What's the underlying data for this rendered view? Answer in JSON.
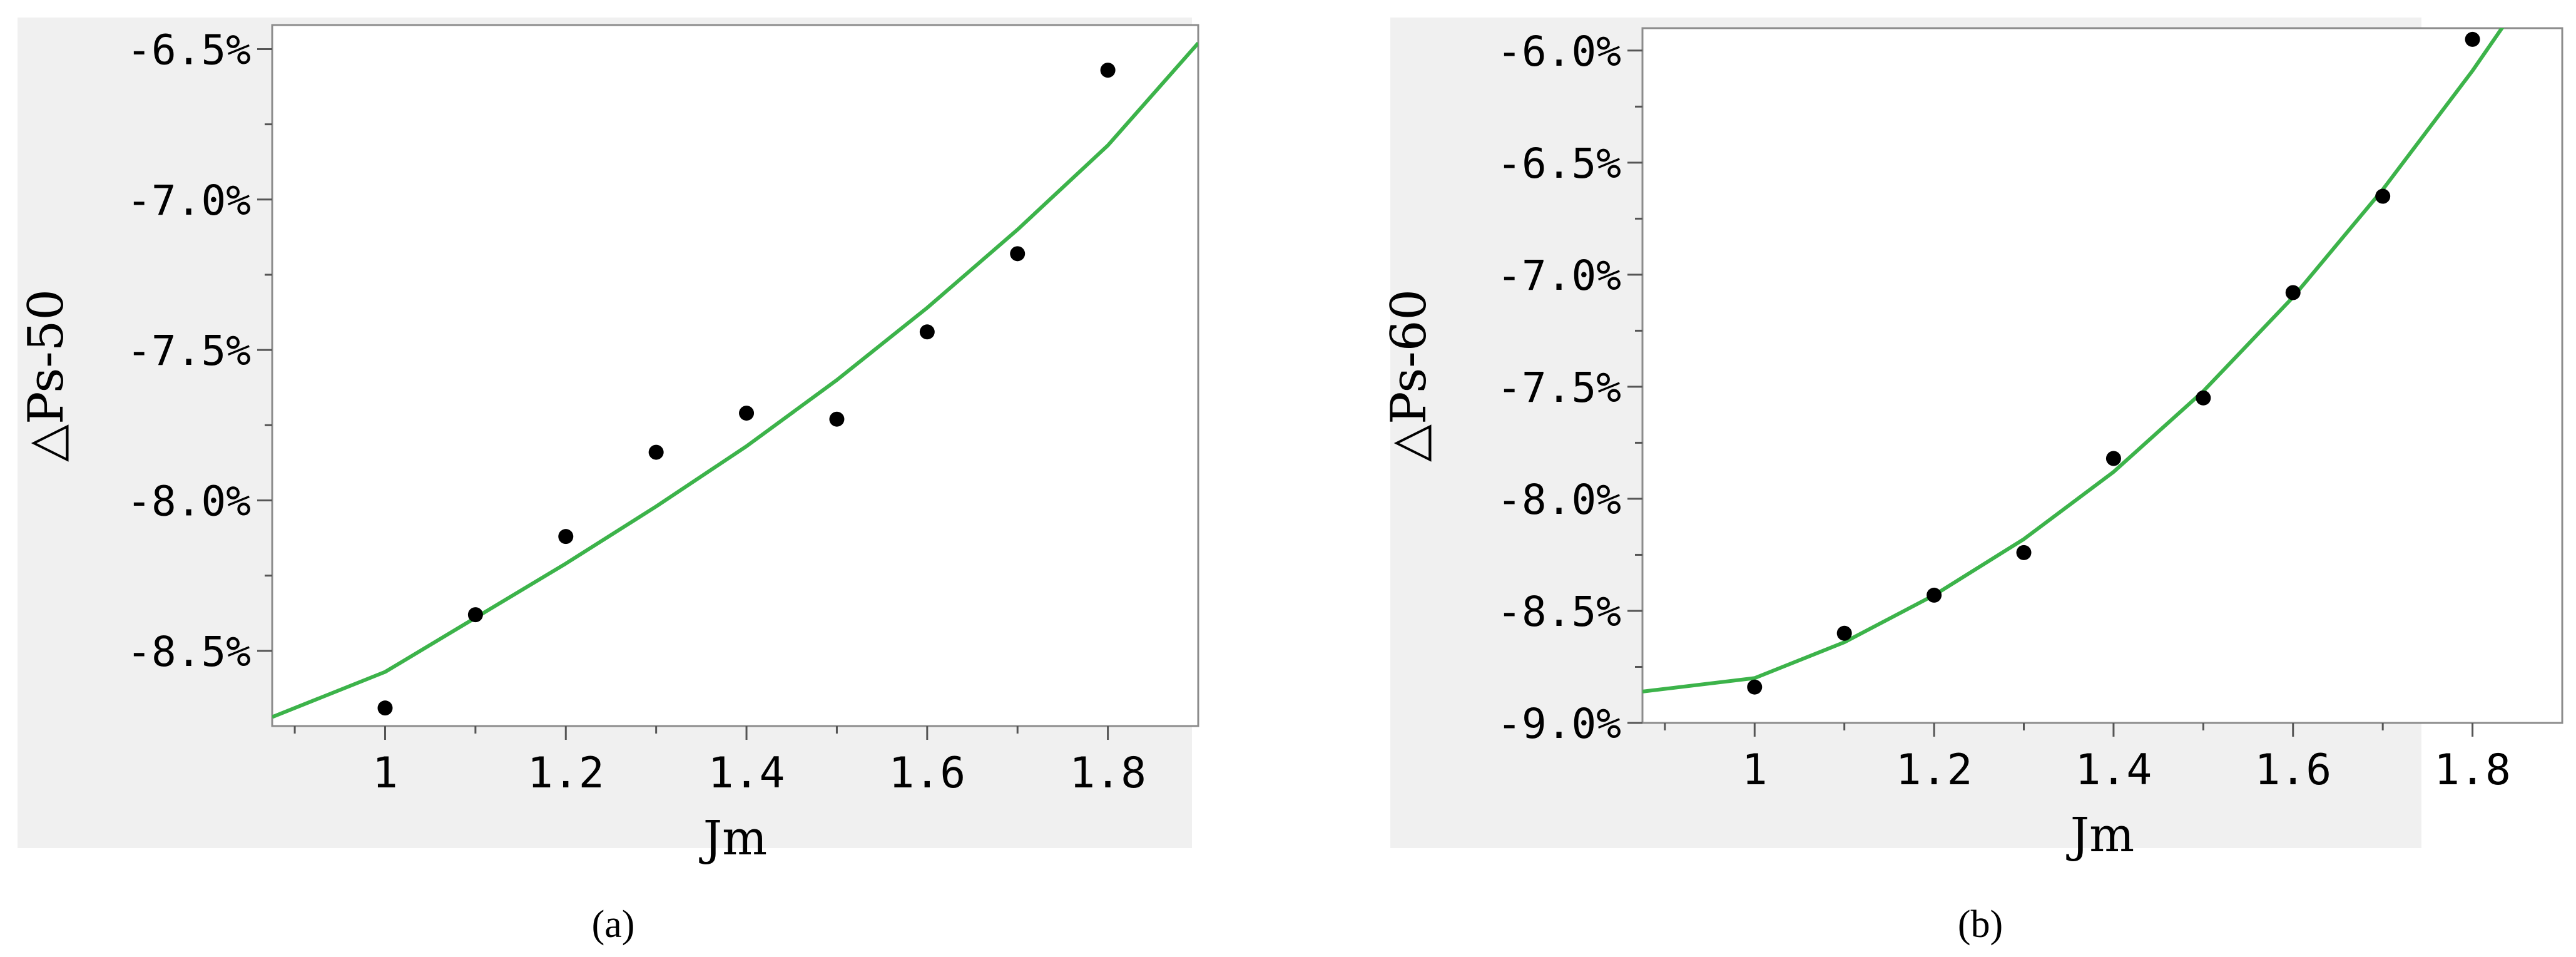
{
  "chart_data": [
    {
      "type": "scatter",
      "ylabel": "△Ps-50",
      "xlabel": "Jm",
      "caption": "(a)",
      "x_ticks": [
        "1",
        "1.2",
        "1.4",
        "1.6",
        "1.8"
      ],
      "y_ticks": [
        "-6.5%",
        "-7.0%",
        "-7.5%",
        "-8.0%",
        "-8.5%"
      ],
      "xlim": [
        0.875,
        1.9
      ],
      "ylim": [
        -8.75,
        -6.42
      ],
      "points": {
        "x": [
          1.0,
          1.1,
          1.2,
          1.3,
          1.4,
          1.5,
          1.6,
          1.7,
          1.8
        ],
        "y": [
          -8.69,
          -8.38,
          -8.12,
          -7.84,
          -7.71,
          -7.73,
          -7.44,
          -7.18,
          -6.57
        ]
      },
      "fit_curve": {
        "x": [
          0.875,
          1.0,
          1.1,
          1.2,
          1.3,
          1.4,
          1.5,
          1.6,
          1.7,
          1.8,
          1.9
        ],
        "y": [
          -8.72,
          -8.57,
          -8.39,
          -8.21,
          -8.02,
          -7.82,
          -7.6,
          -7.36,
          -7.1,
          -6.82,
          -6.48
        ]
      },
      "grid": false,
      "colors": {
        "curve": "#3cb34a",
        "points": "#000000",
        "plot_bg": "#ffffff",
        "panel_bg": "#f0f0f0"
      }
    },
    {
      "type": "scatter",
      "ylabel": "△Ps-60",
      "xlabel": "Jm",
      "caption": "(b)",
      "x_ticks": [
        "1",
        "1.2",
        "1.4",
        "1.6",
        "1.8"
      ],
      "y_ticks": [
        "-6.0%",
        "-6.5%",
        "-7.0%",
        "-7.5%",
        "-8.0%",
        "-8.5%",
        "-9.0%"
      ],
      "xlim": [
        0.875,
        1.9
      ],
      "ylim": [
        -9.0,
        -5.9
      ],
      "points": {
        "x": [
          1.0,
          1.1,
          1.2,
          1.3,
          1.4,
          1.5,
          1.6,
          1.7,
          1.8
        ],
        "y": [
          -8.84,
          -8.6,
          -8.43,
          -8.24,
          -7.82,
          -7.55,
          -7.08,
          -6.65,
          -5.95
        ]
      },
      "fit_curve": {
        "x": [
          0.875,
          1.0,
          1.1,
          1.2,
          1.3,
          1.4,
          1.5,
          1.6,
          1.7,
          1.8,
          1.85
        ],
        "y": [
          -8.86,
          -8.8,
          -8.64,
          -8.43,
          -8.18,
          -7.88,
          -7.52,
          -7.1,
          -6.62,
          -6.09,
          -5.8
        ]
      },
      "grid": false,
      "colors": {
        "curve": "#3cb34a",
        "points": "#000000",
        "plot_bg": "#ffffff",
        "panel_bg": "#f0f0f0"
      }
    }
  ]
}
